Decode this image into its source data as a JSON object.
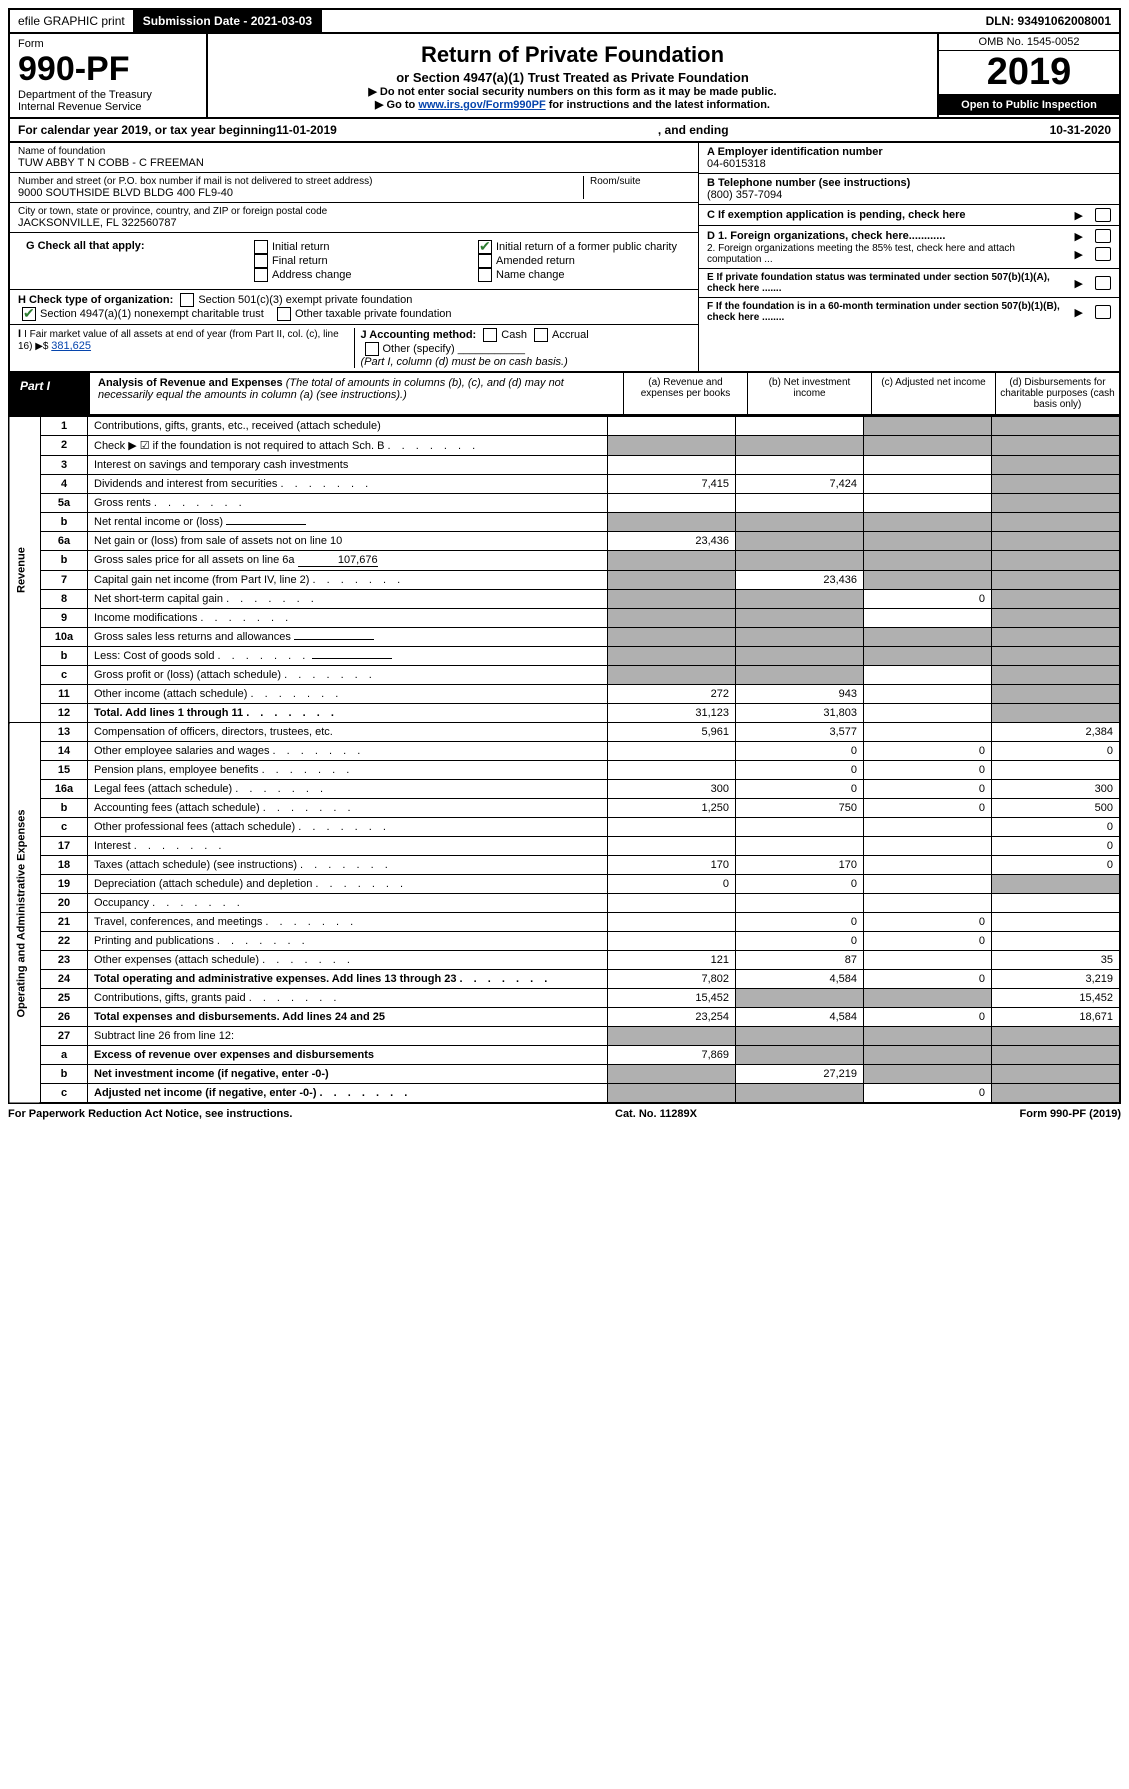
{
  "topbar": {
    "efile": "efile GRAPHIC print",
    "submission_label": "Submission Date - 2021-03-03",
    "dln": "DLN: 93491062008001"
  },
  "header": {
    "form_word": "Form",
    "form_number": "990-PF",
    "dept": "Department of the Treasury",
    "irs": "Internal Revenue Service",
    "title": "Return of Private Foundation",
    "subtitle": "or Section 4947(a)(1) Trust Treated as Private Foundation",
    "note1": "▶ Do not enter social security numbers on this form as it may be made public.",
    "note2_pre": "▶ Go to ",
    "note2_link": "www.irs.gov/Form990PF",
    "note2_post": " for instructions and the latest information.",
    "omb": "OMB No. 1545-0052",
    "year": "2019",
    "open": "Open to Public Inspection"
  },
  "calendar": {
    "prefix": "For calendar year 2019, or tax year beginning ",
    "begin": "11-01-2019",
    "mid": " , and ending ",
    "end": "10-31-2020"
  },
  "entity": {
    "name_label": "Name of foundation",
    "name": "TUW ABBY T N COBB - C FREEMAN",
    "addr_label": "Number and street (or P.O. box number if mail is not delivered to street address)",
    "addr": "9000 SOUTHSIDE BLVD BLDG 400 FL9-40",
    "room_label": "Room/suite",
    "city_label": "City or town, state or province, country, and ZIP or foreign postal code",
    "city": "JACKSONVILLE, FL 322560787",
    "a_label": "A Employer identification number",
    "a_val": "04-6015318",
    "b_label": "B Telephone number (see instructions)",
    "b_val": "(800) 357-7094",
    "c_label": "C If exemption application is pending, check here",
    "d1": "D 1. Foreign organizations, check here............",
    "d2": "2. Foreign organizations meeting the 85% test, check here and attach computation ...",
    "e_label": "E If private foundation status was terminated under section 507(b)(1)(A), check here .......",
    "f_label": "F If the foundation is in a 60-month termination under section 507(b)(1)(B), check here ........"
  },
  "g": {
    "label": "G Check all that apply:",
    "initial": "Initial return",
    "initial_former": "Initial return of a former public charity",
    "final": "Final return",
    "amended": "Amended return",
    "addr_change": "Address change",
    "name_change": "Name change"
  },
  "h": {
    "label": "H Check type of organization:",
    "opt1": "Section 501(c)(3) exempt private foundation",
    "opt2": "Section 4947(a)(1) nonexempt charitable trust",
    "opt3": "Other taxable private foundation"
  },
  "i": {
    "label": "I Fair market value of all assets at end of year (from Part II, col. (c), line 16) ▶$ ",
    "value": "381,625"
  },
  "j": {
    "label": "J Accounting method:",
    "cash": "Cash",
    "accrual": "Accrual",
    "other": "Other (specify)",
    "note": "(Part I, column (d) must be on cash basis.)"
  },
  "part1": {
    "label": "Part I",
    "title": "Analysis of Revenue and Expenses",
    "title_note": " (The total of amounts in columns (b), (c), and (d) may not necessarily equal the amounts in column (a) (see instructions).)",
    "col_a": "(a) Revenue and expenses per books",
    "col_b": "(b) Net investment income",
    "col_c": "(c) Adjusted net income",
    "col_d": "(d) Disbursements for charitable purposes (cash basis only)"
  },
  "side": {
    "revenue": "Revenue",
    "expenses": "Operating and Administrative Expenses"
  },
  "rows": [
    {
      "n": "1",
      "desc": "Contributions, gifts, grants, etc., received (attach schedule)",
      "a": "",
      "b": "",
      "c": "s",
      "d": "s"
    },
    {
      "n": "2",
      "desc": "Check ▶ ☑ if the foundation is not required to attach Sch. B",
      "dots": true,
      "a": "s",
      "b": "s",
      "c": "s",
      "d": "s",
      "nob": true
    },
    {
      "n": "3",
      "desc": "Interest on savings and temporary cash investments",
      "a": "",
      "b": "",
      "c": "",
      "d": "s"
    },
    {
      "n": "4",
      "desc": "Dividends and interest from securities",
      "dots": true,
      "a": "7,415",
      "b": "7,424",
      "c": "",
      "d": "s"
    },
    {
      "n": "5a",
      "desc": "Gross rents",
      "dots": true,
      "a": "",
      "b": "",
      "c": "",
      "d": "s"
    },
    {
      "n": "b",
      "desc": "Net rental income or (loss)",
      "inline": "",
      "a": "s",
      "b": "s",
      "c": "s",
      "d": "s"
    },
    {
      "n": "6a",
      "desc": "Net gain or (loss) from sale of assets not on line 10",
      "a": "23,436",
      "b": "s",
      "c": "s",
      "d": "s"
    },
    {
      "n": "b",
      "desc": "Gross sales price for all assets on line 6a",
      "inline": "107,676",
      "a": "s",
      "b": "s",
      "c": "s",
      "d": "s"
    },
    {
      "n": "7",
      "desc": "Capital gain net income (from Part IV, line 2)",
      "dots": true,
      "a": "s",
      "b": "23,436",
      "c": "s",
      "d": "s"
    },
    {
      "n": "8",
      "desc": "Net short-term capital gain",
      "dots": true,
      "a": "s",
      "b": "s",
      "c": "0",
      "d": "s"
    },
    {
      "n": "9",
      "desc": "Income modifications",
      "dots": true,
      "a": "s",
      "b": "s",
      "c": "",
      "d": "s"
    },
    {
      "n": "10a",
      "desc": "Gross sales less returns and allowances",
      "inline": "",
      "a": "s",
      "b": "s",
      "c": "s",
      "d": "s"
    },
    {
      "n": "b",
      "desc": "Less: Cost of goods sold",
      "dots": true,
      "inline": "",
      "a": "s",
      "b": "s",
      "c": "s",
      "d": "s"
    },
    {
      "n": "c",
      "desc": "Gross profit or (loss) (attach schedule)",
      "dots": true,
      "a": "s",
      "b": "s",
      "c": "",
      "d": "s"
    },
    {
      "n": "11",
      "desc": "Other income (attach schedule)",
      "dots": true,
      "a": "272",
      "b": "943",
      "c": "",
      "d": "s"
    },
    {
      "n": "12",
      "desc": "Total. Add lines 1 through 11",
      "dots": true,
      "bold": true,
      "a": "31,123",
      "b": "31,803",
      "c": "",
      "d": "s"
    },
    {
      "n": "13",
      "desc": "Compensation of officers, directors, trustees, etc.",
      "a": "5,961",
      "b": "3,577",
      "c": "",
      "d": "2,384"
    },
    {
      "n": "14",
      "desc": "Other employee salaries and wages",
      "dots": true,
      "a": "",
      "b": "0",
      "c": "0",
      "d": "0"
    },
    {
      "n": "15",
      "desc": "Pension plans, employee benefits",
      "dots": true,
      "a": "",
      "b": "0",
      "c": "0",
      "d": ""
    },
    {
      "n": "16a",
      "desc": "Legal fees (attach schedule)",
      "dots": true,
      "a": "300",
      "b": "0",
      "c": "0",
      "d": "300"
    },
    {
      "n": "b",
      "desc": "Accounting fees (attach schedule)",
      "dots": true,
      "a": "1,250",
      "b": "750",
      "c": "0",
      "d": "500"
    },
    {
      "n": "c",
      "desc": "Other professional fees (attach schedule)",
      "dots": true,
      "a": "",
      "b": "",
      "c": "",
      "d": "0"
    },
    {
      "n": "17",
      "desc": "Interest",
      "dots": true,
      "a": "",
      "b": "",
      "c": "",
      "d": "0"
    },
    {
      "n": "18",
      "desc": "Taxes (attach schedule) (see instructions)",
      "dots": true,
      "a": "170",
      "b": "170",
      "c": "",
      "d": "0"
    },
    {
      "n": "19",
      "desc": "Depreciation (attach schedule) and depletion",
      "dots": true,
      "a": "0",
      "b": "0",
      "c": "",
      "d": "s"
    },
    {
      "n": "20",
      "desc": "Occupancy",
      "dots": true,
      "a": "",
      "b": "",
      "c": "",
      "d": ""
    },
    {
      "n": "21",
      "desc": "Travel, conferences, and meetings",
      "dots": true,
      "a": "",
      "b": "0",
      "c": "0",
      "d": ""
    },
    {
      "n": "22",
      "desc": "Printing and publications",
      "dots": true,
      "a": "",
      "b": "0",
      "c": "0",
      "d": ""
    },
    {
      "n": "23",
      "desc": "Other expenses (attach schedule)",
      "dots": true,
      "a": "121",
      "b": "87",
      "c": "",
      "d": "35"
    },
    {
      "n": "24",
      "desc": "Total operating and administrative expenses. Add lines 13 through 23",
      "dots": true,
      "bold": true,
      "a": "7,802",
      "b": "4,584",
      "c": "0",
      "d": "3,219"
    },
    {
      "n": "25",
      "desc": "Contributions, gifts, grants paid",
      "dots": true,
      "a": "15,452",
      "b": "s",
      "c": "s",
      "d": "15,452"
    },
    {
      "n": "26",
      "desc": "Total expenses and disbursements. Add lines 24 and 25",
      "bold": true,
      "a": "23,254",
      "b": "4,584",
      "c": "0",
      "d": "18,671"
    },
    {
      "n": "27",
      "desc": "Subtract line 26 from line 12:",
      "a": "s",
      "b": "s",
      "c": "s",
      "d": "s"
    },
    {
      "n": "a",
      "desc": "Excess of revenue over expenses and disbursements",
      "bold": true,
      "a": "7,869",
      "b": "s",
      "c": "s",
      "d": "s"
    },
    {
      "n": "b",
      "desc": "Net investment income (if negative, enter -0-)",
      "bold": true,
      "a": "s",
      "b": "27,219",
      "c": "s",
      "d": "s"
    },
    {
      "n": "c",
      "desc": "Adjusted net income (if negative, enter -0-)",
      "dots": true,
      "bold": true,
      "a": "s",
      "b": "s",
      "c": "0",
      "d": "s"
    }
  ],
  "footer": {
    "left": "For Paperwork Reduction Act Notice, see instructions.",
    "mid": "Cat. No. 11289X",
    "right": "Form 990-PF (2019)"
  }
}
